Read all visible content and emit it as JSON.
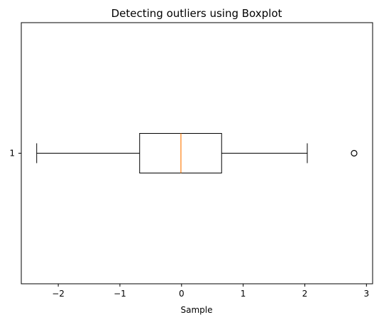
{
  "chart_data": {
    "type": "boxplot",
    "orientation": "horizontal",
    "title": "Detecting outliers using Boxplot",
    "xlabel": "Sample",
    "ylabel": "",
    "xlim": [
      -2.6,
      3.1
    ],
    "x_ticks": [
      -2,
      -1,
      0,
      1,
      2,
      3
    ],
    "x_tick_labels": [
      "−2",
      "−1",
      "0",
      "1",
      "2",
      "3"
    ],
    "categories": [
      "1"
    ],
    "boxes": [
      {
        "label": "1",
        "whisker_low": -2.35,
        "q1": -0.68,
        "median": -0.01,
        "q3": 0.65,
        "whisker_high": 2.04,
        "outliers": [
          2.8
        ]
      }
    ],
    "colors": {
      "box": "#000000",
      "median": "#ff7f0e",
      "whisker": "#000000",
      "outlier": "#000000"
    },
    "grid": false,
    "legend": "none"
  }
}
